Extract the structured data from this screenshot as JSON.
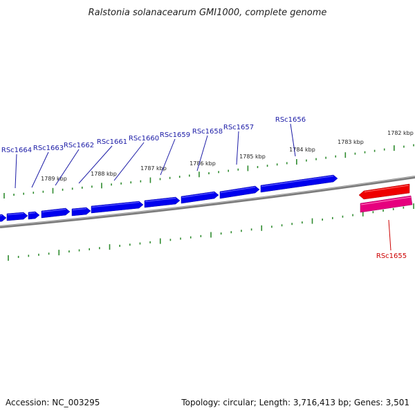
{
  "title": "Ralstonia solanacearum GMI1000, complete genome",
  "footer": {
    "accession": "Accession: NC_003295",
    "summary": "Topology: circular; Length: 3,716,413 bp; Genes: 3,501"
  },
  "colors": {
    "backbone": "#7a7a7a",
    "tick": "#2e8b2e",
    "forward_gene": "#0000ee",
    "forward_label": "#1a1aa6",
    "reverse_gene_outer": "#ee0000",
    "reverse_gene_inner": "#e6007e",
    "reverse_label": "#cc0000"
  },
  "kbp_labels": [
    "1789 kbp",
    "1788 kbp",
    "1787 kbp",
    "1786 kbp",
    "1785 kbp",
    "1784 kbp",
    "1783 kbp",
    "1782 kbp"
  ],
  "forward_genes": [
    "RSc1664",
    "RSc1663",
    "RSc1662",
    "RSc1661",
    "RSc1660",
    "RSc1659",
    "RSc1658",
    "RSc1657",
    "RSc1656"
  ],
  "reverse_genes": [
    "RSc1655"
  ]
}
